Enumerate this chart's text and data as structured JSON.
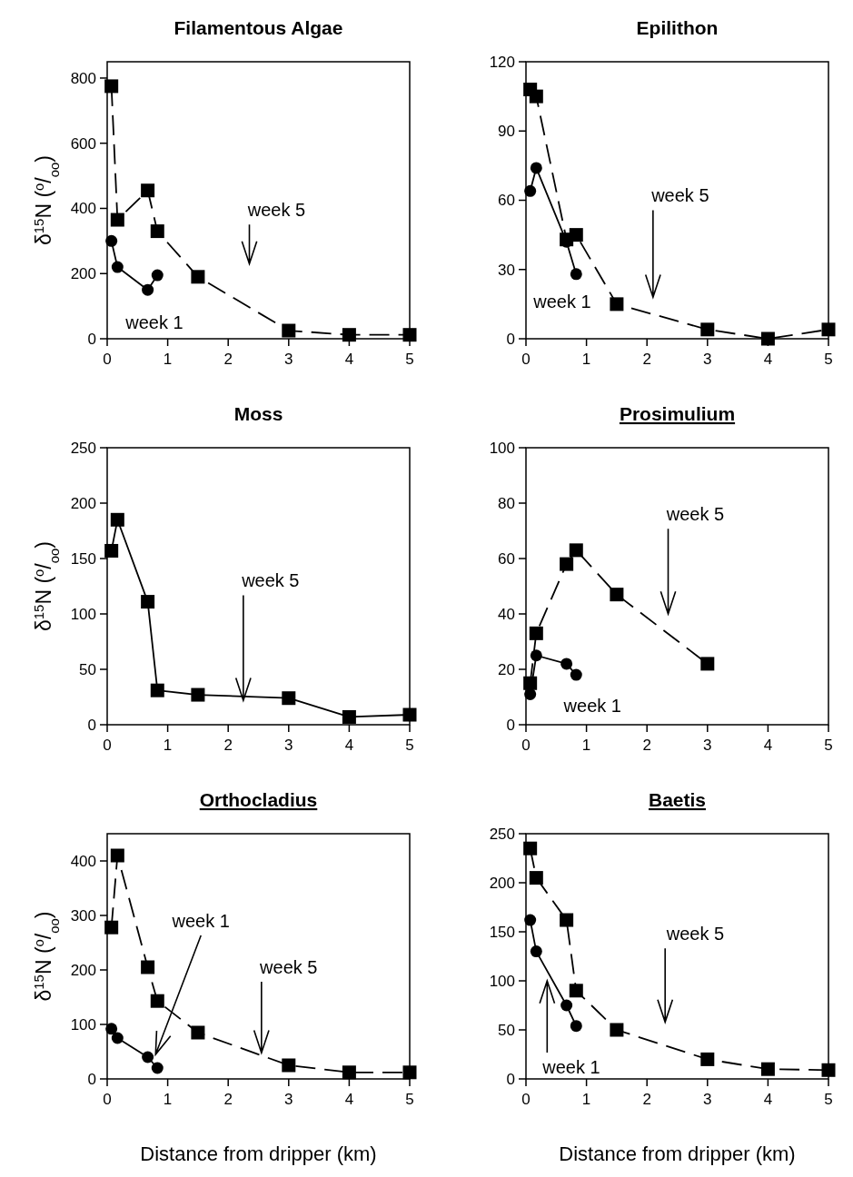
{
  "chart_data": [
    {
      "type": "line",
      "title": "Filamentous Algae",
      "ylabel": "δ$^{15}$N ($^{o}$/$_{oo}$)",
      "xlim": [
        0,
        5
      ],
      "xticks": [
        0,
        1,
        2,
        3,
        4,
        5
      ],
      "ylim": [
        0,
        850
      ],
      "yticks": [
        0,
        200,
        400,
        600,
        800
      ],
      "x": [
        0.07,
        0.17,
        0.67,
        0.83,
        1.5,
        3,
        4,
        5
      ],
      "tick_labels": true,
      "series": [
        {
          "color": "#000000",
          "marker": "square",
          "line_style": "dashed",
          "values": [
            775,
            365,
            455,
            330,
            190,
            25,
            12,
            12
          ]
        },
        {
          "color": "#000000",
          "marker": "circle",
          "line_style": "solid",
          "x": [
            0.07,
            0.17,
            0.67,
            0.83
          ],
          "values": [
            300,
            220,
            150,
            195
          ]
        }
      ],
      "annotations": [
        "week 5",
        "week 1"
      ]
    },
    {
      "type": "line",
      "title": "Epilithon",
      "xlim": [
        0,
        5
      ],
      "xticks": [
        0,
        1,
        2,
        3,
        4,
        5
      ],
      "ylim": [
        0,
        120
      ],
      "yticks": [
        0,
        30,
        60,
        90,
        120
      ],
      "x": [
        0.07,
        0.17,
        0.67,
        0.83,
        1.5,
        3,
        4,
        5
      ],
      "series": [
        {
          "color": "#000000",
          "marker": "square",
          "line_style": "dashed",
          "values": [
            108,
            105,
            43,
            45,
            15,
            4,
            0,
            4
          ]
        },
        {
          "color": "#000000",
          "marker": "circle",
          "line_style": "solid",
          "x": [
            0.07,
            0.17,
            0.67,
            0.83
          ],
          "values": [
            64,
            74,
            42,
            28
          ]
        }
      ],
      "annotations": [
        "week 5",
        "week 1"
      ]
    },
    {
      "type": "line",
      "title": "Moss",
      "ylabel": "δ$^{15}$N ($^{o}$/$_{oo}$)",
      "xlim": [
        0,
        5
      ],
      "xticks": [
        0,
        1,
        2,
        3,
        4,
        5
      ],
      "ylim": [
        0,
        250
      ],
      "yticks": [
        0,
        50,
        100,
        150,
        200,
        250
      ],
      "x": [
        0.07,
        0.17,
        0.67,
        0.83,
        1.5,
        3,
        4,
        5
      ],
      "series": [
        {
          "color": "#000000",
          "marker": "square",
          "line_style": "solid",
          "values": [
            157,
            185,
            111,
            31,
            27,
            24,
            7,
            9
          ]
        }
      ],
      "annotations": [
        {
          "text": "week 5",
          "x": 2.25,
          "y": 22
        }
      ]
    },
    {
      "type": "line",
      "title": "Prosimulium",
      "xlim": [
        0,
        5
      ],
      "xticks": [
        0,
        1,
        2,
        3,
        4,
        5
      ],
      "ylim": [
        0,
        100
      ],
      "yticks": [
        0,
        20,
        40,
        60,
        80,
        100
      ],
      "x": [
        0.07,
        0.17,
        0.67,
        0.83,
        1.5,
        3
      ],
      "series": [
        {
          "color": "#000000",
          "marker": "square",
          "line_style": "dashed",
          "values": [
            15,
            33,
            58,
            63,
            47,
            22
          ]
        },
        {
          "color": "#000000",
          "marker": "circle",
          "line_style": "solid",
          "x": [
            0.07,
            0.17,
            0.67,
            0.83
          ],
          "values": [
            11,
            25,
            22,
            18
          ]
        }
      ],
      "annotations": [
        "week 5",
        "week 1"
      ]
    },
    {
      "type": "line",
      "title": "Orthocladius",
      "ylabel": "δ$^{15}$N ($^{o}$/$_{oo}$)",
      "xlabel": "Distance from dripper (km)",
      "xlim": [
        0,
        5
      ],
      "xticks": [
        0,
        1,
        2,
        3,
        4,
        5
      ],
      "ylim": [
        0,
        450
      ],
      "yticks": [
        0,
        100,
        200,
        300,
        400
      ],
      "x": [
        0.07,
        0.17,
        0.67,
        0.83,
        1.5,
        3,
        4,
        5
      ],
      "series": [
        {
          "color": "#000000",
          "marker": "square",
          "line_style": "dashed",
          "values": [
            278,
            410,
            205,
            143,
            85,
            25,
            12,
            12
          ]
        },
        {
          "color": "#000000",
          "marker": "circle",
          "line_style": "solid",
          "x": [
            0.07,
            0.17,
            0.67,
            0.83
          ],
          "values": [
            92,
            75,
            40,
            20
          ]
        }
      ],
      "annotations": [
        {
          "text": "week 1",
          "x": 0.8,
          "y": 45
        },
        {
          "text": "week 5",
          "x": 2.55,
          "y": 48
        }
      ]
    },
    {
      "type": "line",
      "title": "Baetis",
      "xlabel": "Distance from dripper (km)",
      "xlim": [
        0,
        5
      ],
      "xticks": [
        0,
        1,
        2,
        3,
        4,
        5
      ],
      "ylim": [
        0,
        250
      ],
      "yticks": [
        0,
        50,
        100,
        150,
        200,
        250
      ],
      "x": [
        0.07,
        0.17,
        0.67,
        0.83,
        1.5,
        3,
        4,
        5
      ],
      "series": [
        {
          "color": "#000000",
          "marker": "square",
          "line_style": "dashed",
          "values": [
            235,
            205,
            162,
            90,
            50,
            20,
            10,
            9
          ]
        },
        {
          "color": "#000000",
          "marker": "circle",
          "line_style": "solid",
          "x": [
            0.07,
            0.17,
            0.67,
            0.83
          ],
          "values": [
            162,
            130,
            75,
            54
          ]
        }
      ],
      "annotations": [
        "week 5",
        {
          "text": "week 1",
          "x": 0.35,
          "y": 100
        }
      ]
    }
  ]
}
